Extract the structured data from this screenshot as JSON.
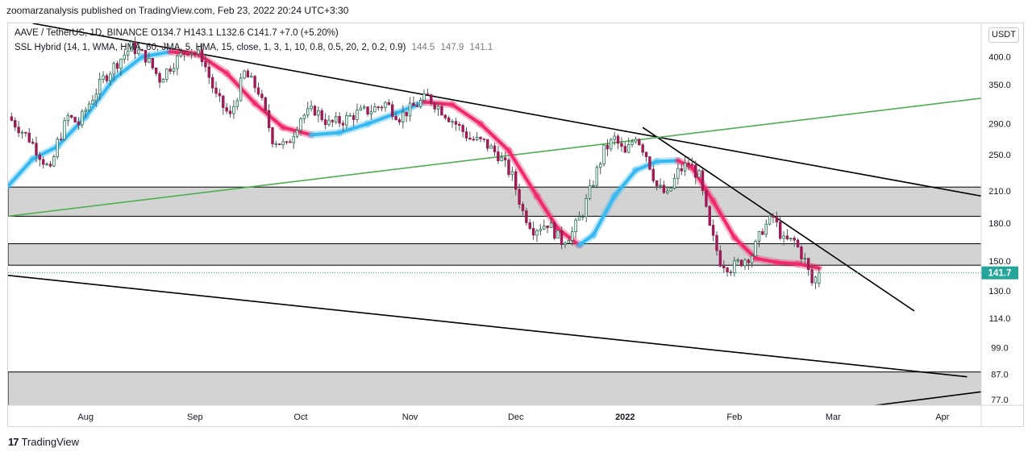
{
  "header": {
    "publisher": "zoomarzanalysis published on TradingView.com, Feb 23, 2022 20:24 UTC+3:30"
  },
  "legend": {
    "symbol": "AAVE / TetherUS, 1D, BINANCE",
    "ohlc": "O134.7 H143.1 L132.6 C141.7 +7.0 (+5.20%)",
    "indicator": "SSL Hybrid (14, 1, WMA, HMA, 60, JMA, 5, HMA, 15, close, 1, 3, 1, 10, 0.8, 0.5, 20, 2, 0.2, 0.9)",
    "indicator_values": [
      "144.5",
      "147.9",
      "141.1"
    ]
  },
  "currency_button": "USDT",
  "footer": {
    "brand": "TradingView"
  },
  "colors": {
    "bull": "#26a69a",
    "bear": "#ef5350",
    "ssl_up": "#36b8f0",
    "ssl_down": "#f0286c",
    "zone": "#d3d3d3",
    "trend_green": "#4caf50",
    "trend_black": "#000000",
    "price_tag": "#26a69a"
  },
  "chart_data": {
    "type": "candlestick",
    "title": "AAVE / TetherUS, 1D, BINANCE",
    "y_scale": "log",
    "ylim": [
      75,
      470
    ],
    "y_ticks": [
      "400.0",
      "350.0",
      "290.0",
      "250.0",
      "210.0",
      "180.0",
      "150.0",
      "130.0",
      "114.0",
      "99.0",
      "87.0",
      "77.0"
    ],
    "x_ticks": [
      {
        "label": "Aug",
        "day": 0
      },
      {
        "label": "Sep",
        "day": 31
      },
      {
        "label": "Oct",
        "day": 61
      },
      {
        "label": "Nov",
        "day": 92
      },
      {
        "label": "Dec",
        "day": 122
      },
      {
        "label": "2022",
        "day": 153
      },
      {
        "label": "Feb",
        "day": 184
      },
      {
        "label": "Mar",
        "day": 212
      },
      {
        "label": "Apr",
        "day": 243
      }
    ],
    "xlim_days": [
      -22,
      254
    ],
    "last_price": "141.7",
    "close_series": [
      {
        "day": -22,
        "price": 300
      },
      {
        "day": -19,
        "price": 285
      },
      {
        "day": -16,
        "price": 270
      },
      {
        "day": -13,
        "price": 250
      },
      {
        "day": -10,
        "price": 230
      },
      {
        "day": -8,
        "price": 265
      },
      {
        "day": -5,
        "price": 300
      },
      {
        "day": -2,
        "price": 290
      },
      {
        "day": 1,
        "price": 320
      },
      {
        "day": 5,
        "price": 360
      },
      {
        "day": 9,
        "price": 390
      },
      {
        "day": 13,
        "price": 420
      },
      {
        "day": 17,
        "price": 400
      },
      {
        "day": 21,
        "price": 360
      },
      {
        "day": 25,
        "price": 390
      },
      {
        "day": 29,
        "price": 415
      },
      {
        "day": 33,
        "price": 400
      },
      {
        "day": 37,
        "price": 330
      },
      {
        "day": 41,
        "price": 300
      },
      {
        "day": 45,
        "price": 370
      },
      {
        "day": 49,
        "price": 340
      },
      {
        "day": 53,
        "price": 270
      },
      {
        "day": 57,
        "price": 260
      },
      {
        "day": 61,
        "price": 300
      },
      {
        "day": 65,
        "price": 310
      },
      {
        "day": 69,
        "price": 290
      },
      {
        "day": 73,
        "price": 295
      },
      {
        "day": 77,
        "price": 305
      },
      {
        "day": 81,
        "price": 310
      },
      {
        "day": 85,
        "price": 320
      },
      {
        "day": 89,
        "price": 300
      },
      {
        "day": 93,
        "price": 315
      },
      {
        "day": 97,
        "price": 330
      },
      {
        "day": 101,
        "price": 310
      },
      {
        "day": 105,
        "price": 290
      },
      {
        "day": 109,
        "price": 270
      },
      {
        "day": 113,
        "price": 265
      },
      {
        "day": 117,
        "price": 250
      },
      {
        "day": 121,
        "price": 225
      },
      {
        "day": 124,
        "price": 190
      },
      {
        "day": 127,
        "price": 175
      },
      {
        "day": 131,
        "price": 180
      },
      {
        "day": 135,
        "price": 165
      },
      {
        "day": 138,
        "price": 172
      },
      {
        "day": 141,
        "price": 190
      },
      {
        "day": 144,
        "price": 220
      },
      {
        "day": 147,
        "price": 255
      },
      {
        "day": 150,
        "price": 270
      },
      {
        "day": 153,
        "price": 250
      },
      {
        "day": 156,
        "price": 275
      },
      {
        "day": 159,
        "price": 250
      },
      {
        "day": 162,
        "price": 215
      },
      {
        "day": 165,
        "price": 205
      },
      {
        "day": 168,
        "price": 230
      },
      {
        "day": 171,
        "price": 240
      },
      {
        "day": 174,
        "price": 225
      },
      {
        "day": 177,
        "price": 175
      },
      {
        "day": 180,
        "price": 150
      },
      {
        "day": 183,
        "price": 145
      },
      {
        "day": 186,
        "price": 150
      },
      {
        "day": 189,
        "price": 155
      },
      {
        "day": 192,
        "price": 175
      },
      {
        "day": 195,
        "price": 185
      },
      {
        "day": 198,
        "price": 165
      },
      {
        "day": 201,
        "price": 165
      },
      {
        "day": 204,
        "price": 150
      },
      {
        "day": 206,
        "price": 135
      },
      {
        "day": 208,
        "price": 141.7
      }
    ],
    "ssl_baseline": [
      {
        "day": -22,
        "price": 215
      },
      {
        "day": -15,
        "price": 245
      },
      {
        "day": -8,
        "price": 260
      },
      {
        "day": 0,
        "price": 300
      },
      {
        "day": 8,
        "price": 360
      },
      {
        "day": 16,
        "price": 400
      },
      {
        "day": 24,
        "price": 410
      },
      {
        "day": 32,
        "price": 405
      },
      {
        "day": 40,
        "price": 370
      },
      {
        "day": 48,
        "price": 320
      },
      {
        "day": 56,
        "price": 285
      },
      {
        "day": 64,
        "price": 275
      },
      {
        "day": 72,
        "price": 278
      },
      {
        "day": 80,
        "price": 290
      },
      {
        "day": 88,
        "price": 305
      },
      {
        "day": 96,
        "price": 322
      },
      {
        "day": 104,
        "price": 318
      },
      {
        "day": 112,
        "price": 290
      },
      {
        "day": 120,
        "price": 255
      },
      {
        "day": 128,
        "price": 205
      },
      {
        "day": 134,
        "price": 175
      },
      {
        "day": 140,
        "price": 162
      },
      {
        "day": 144,
        "price": 170
      },
      {
        "day": 150,
        "price": 205
      },
      {
        "day": 156,
        "price": 232
      },
      {
        "day": 162,
        "price": 242
      },
      {
        "day": 168,
        "price": 243
      },
      {
        "day": 172,
        "price": 235
      },
      {
        "day": 178,
        "price": 200
      },
      {
        "day": 184,
        "price": 168
      },
      {
        "day": 190,
        "price": 152
      },
      {
        "day": 196,
        "price": 149
      },
      {
        "day": 202,
        "price": 148
      },
      {
        "day": 208,
        "price": 145
      }
    ],
    "zones": [
      {
        "low": 186,
        "high": 214
      },
      {
        "low": 147,
        "high": 163
      },
      {
        "low": 75,
        "high": 88
      }
    ],
    "trendlines": [
      {
        "color": "black",
        "from": {
          "day": -22,
          "price": 140
        },
        "to": {
          "day": 250,
          "price": 86
        }
      },
      {
        "color": "black",
        "from": {
          "day": 218,
          "price": 74
        },
        "to": {
          "day": 254,
          "price": 80
        }
      },
      {
        "color": "black",
        "from": {
          "day": -15,
          "price": 470
        },
        "to": {
          "day": 254,
          "price": 205
        }
      },
      {
        "color": "black",
        "from": {
          "day": 158,
          "price": 285
        },
        "to": {
          "day": 235,
          "price": 118
        }
      },
      {
        "color": "green",
        "from": {
          "day": -22,
          "price": 186
        },
        "to": {
          "day": 254,
          "price": 328
        }
      }
    ]
  }
}
